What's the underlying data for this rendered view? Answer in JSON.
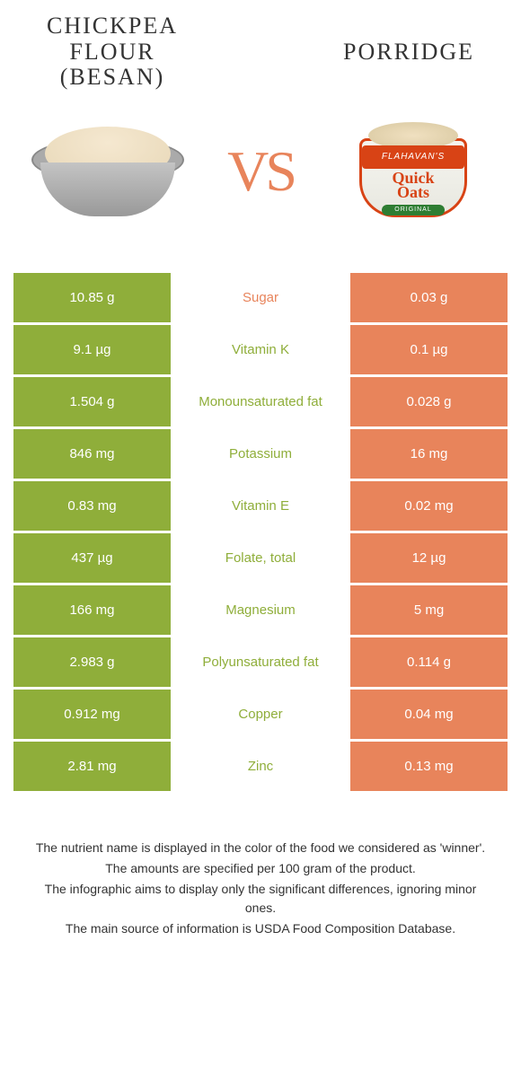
{
  "left_title_line1": "CHICKPEA",
  "left_title_line2": "FLOUR",
  "left_title_line3": "(BESAN)",
  "right_title": "PORRIDGE",
  "vs": "VS",
  "cup_brand": "FLAHAVAN'S",
  "cup_name1": "Quick",
  "cup_name2": "Oats",
  "cup_original": "ORIGINAL",
  "colors": {
    "left": "#8fae3a",
    "right": "#e8845b",
    "vs": "#e8845b"
  },
  "rows": [
    {
      "l": "10.85 g",
      "m": "Sugar",
      "r": "0.03 g",
      "win": "r"
    },
    {
      "l": "9.1 µg",
      "m": "Vitamin K",
      "r": "0.1 µg",
      "win": "l"
    },
    {
      "l": "1.504 g",
      "m": "Monounsaturated fat",
      "r": "0.028 g",
      "win": "l"
    },
    {
      "l": "846 mg",
      "m": "Potassium",
      "r": "16 mg",
      "win": "l"
    },
    {
      "l": "0.83 mg",
      "m": "Vitamin E",
      "r": "0.02 mg",
      "win": "l"
    },
    {
      "l": "437 µg",
      "m": "Folate, total",
      "r": "12 µg",
      "win": "l"
    },
    {
      "l": "166 mg",
      "m": "Magnesium",
      "r": "5 mg",
      "win": "l"
    },
    {
      "l": "2.983 g",
      "m": "Polyunsaturated fat",
      "r": "0.114 g",
      "win": "l"
    },
    {
      "l": "0.912 mg",
      "m": "Copper",
      "r": "0.04 mg",
      "win": "l"
    },
    {
      "l": "2.81 mg",
      "m": "Zinc",
      "r": "0.13 mg",
      "win": "l"
    }
  ],
  "footer": [
    "The nutrient name is displayed in the color of the food we considered as 'winner'.",
    "The amounts are specified per 100 gram of the product.",
    "The infographic aims to display only the significant differences, ignoring minor ones.",
    "The main source of information is USDA Food Composition Database."
  ]
}
